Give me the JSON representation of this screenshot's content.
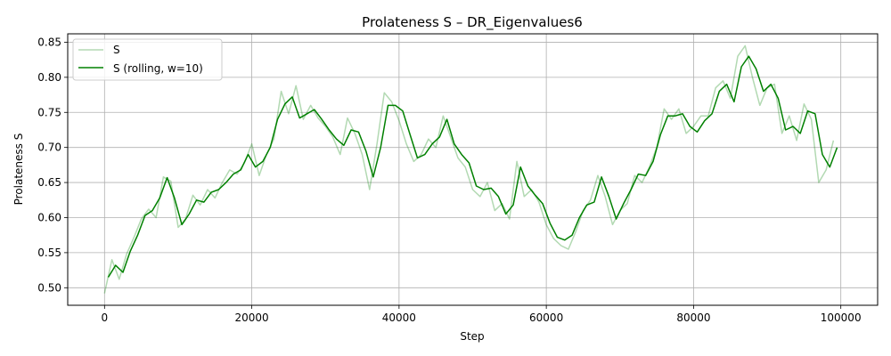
{
  "chart_data": {
    "type": "line",
    "title": "Prolateness S – DR_Eigenvalues6",
    "xlabel": "Step",
    "ylabel": "Prolateness S",
    "xlim": [
      -5000,
      105000
    ],
    "ylim": [
      0.475,
      0.862
    ],
    "xticks": [
      0,
      20000,
      40000,
      60000,
      80000,
      100000
    ],
    "yticks": [
      0.5,
      0.55,
      0.6,
      0.65,
      0.7,
      0.75,
      0.8,
      0.85
    ],
    "xtick_labels": [
      "0",
      "20000",
      "40000",
      "60000",
      "80000",
      "100000"
    ],
    "ytick_labels": [
      "0.50",
      "0.55",
      "0.60",
      "0.65",
      "0.70",
      "0.75",
      "0.80",
      "0.85"
    ],
    "grid": true,
    "legend_position": "top-left",
    "series": [
      {
        "name": "S",
        "color": "#008000",
        "alpha": 0.3,
        "x": [
          0,
          1000,
          2000,
          3000,
          4000,
          5000,
          6000,
          7000,
          8000,
          9000,
          10000,
          11000,
          12000,
          13000,
          14000,
          15000,
          16000,
          17000,
          18000,
          19000,
          20000,
          21000,
          22000,
          23000,
          24000,
          25000,
          26000,
          27000,
          28000,
          29000,
          30000,
          31000,
          32000,
          33000,
          34000,
          35000,
          36000,
          37000,
          38000,
          39000,
          40000,
          41000,
          42000,
          43000,
          44000,
          45000,
          46000,
          47000,
          48000,
          49000,
          50000,
          51000,
          52000,
          53000,
          54000,
          55000,
          56000,
          57000,
          58000,
          59000,
          60000,
          61000,
          62000,
          63000,
          64000,
          65000,
          66000,
          67000,
          68000,
          69000,
          70000,
          71000,
          72000,
          73000,
          74000,
          75000,
          76000,
          77000,
          78000,
          79000,
          80000,
          81000,
          82000,
          83000,
          84000,
          85000,
          86000,
          87000,
          88000,
          89000,
          90000,
          91000,
          92000,
          93000,
          94000,
          95000,
          96000,
          97000,
          98000,
          99000
        ],
        "values": [
          0.492,
          0.54,
          0.512,
          0.548,
          0.572,
          0.598,
          0.612,
          0.6,
          0.658,
          0.652,
          0.586,
          0.598,
          0.632,
          0.618,
          0.64,
          0.628,
          0.65,
          0.668,
          0.662,
          0.678,
          0.705,
          0.66,
          0.69,
          0.712,
          0.78,
          0.748,
          0.788,
          0.74,
          0.76,
          0.742,
          0.73,
          0.715,
          0.69,
          0.742,
          0.72,
          0.69,
          0.64,
          0.705,
          0.778,
          0.765,
          0.738,
          0.705,
          0.68,
          0.69,
          0.712,
          0.7,
          0.745,
          0.715,
          0.685,
          0.672,
          0.64,
          0.63,
          0.65,
          0.61,
          0.62,
          0.598,
          0.68,
          0.63,
          0.64,
          0.622,
          0.59,
          0.57,
          0.56,
          0.555,
          0.58,
          0.61,
          0.625,
          0.66,
          0.63,
          0.59,
          0.61,
          0.62,
          0.66,
          0.65,
          0.672,
          0.7,
          0.755,
          0.74,
          0.755,
          0.72,
          0.73,
          0.745,
          0.745,
          0.785,
          0.795,
          0.77,
          0.83,
          0.845,
          0.8,
          0.76,
          0.785,
          0.79,
          0.72,
          0.745,
          0.71,
          0.762,
          0.74,
          0.65,
          0.668,
          0.71
        ]
      },
      {
        "name": "S (rolling, w=10)",
        "color": "#008000",
        "alpha": 1.0,
        "x": [
          500,
          1500,
          2500,
          3500,
          4500,
          5500,
          6500,
          7500,
          8500,
          9500,
          10500,
          11500,
          12500,
          13500,
          14500,
          15500,
          16500,
          17500,
          18500,
          19500,
          20500,
          21500,
          22500,
          23500,
          24500,
          25500,
          26500,
          27500,
          28500,
          29500,
          30500,
          31500,
          32500,
          33500,
          34500,
          35500,
          36500,
          37500,
          38500,
          39500,
          40500,
          41500,
          42500,
          43500,
          44500,
          45500,
          46500,
          47500,
          48500,
          49500,
          50500,
          51500,
          52500,
          53500,
          54500,
          55500,
          56500,
          57500,
          58500,
          59500,
          60500,
          61500,
          62500,
          63500,
          64500,
          65500,
          66500,
          67500,
          68500,
          69500,
          70500,
          71500,
          72500,
          73500,
          74500,
          75500,
          76500,
          77500,
          78500,
          79500,
          80500,
          81500,
          82500,
          83500,
          84500,
          85500,
          86500,
          87500,
          88500,
          89500,
          90500,
          91500,
          92500,
          93500,
          94500,
          95500,
          96500,
          97500,
          98500,
          99500
        ],
        "values": [
          0.515,
          0.532,
          0.522,
          0.552,
          0.575,
          0.603,
          0.61,
          0.628,
          0.657,
          0.628,
          0.59,
          0.605,
          0.625,
          0.622,
          0.636,
          0.64,
          0.65,
          0.662,
          0.668,
          0.69,
          0.672,
          0.68,
          0.7,
          0.74,
          0.762,
          0.772,
          0.742,
          0.748,
          0.754,
          0.74,
          0.725,
          0.712,
          0.703,
          0.725,
          0.722,
          0.695,
          0.658,
          0.7,
          0.76,
          0.76,
          0.752,
          0.718,
          0.685,
          0.69,
          0.705,
          0.715,
          0.74,
          0.705,
          0.69,
          0.678,
          0.645,
          0.64,
          0.642,
          0.63,
          0.605,
          0.618,
          0.672,
          0.645,
          0.632,
          0.62,
          0.592,
          0.572,
          0.568,
          0.575,
          0.6,
          0.618,
          0.622,
          0.658,
          0.63,
          0.598,
          0.62,
          0.64,
          0.662,
          0.66,
          0.68,
          0.718,
          0.745,
          0.745,
          0.748,
          0.73,
          0.722,
          0.738,
          0.748,
          0.78,
          0.79,
          0.765,
          0.815,
          0.83,
          0.812,
          0.78,
          0.79,
          0.77,
          0.725,
          0.73,
          0.72,
          0.752,
          0.748,
          0.69,
          0.672,
          0.7
        ]
      }
    ]
  }
}
